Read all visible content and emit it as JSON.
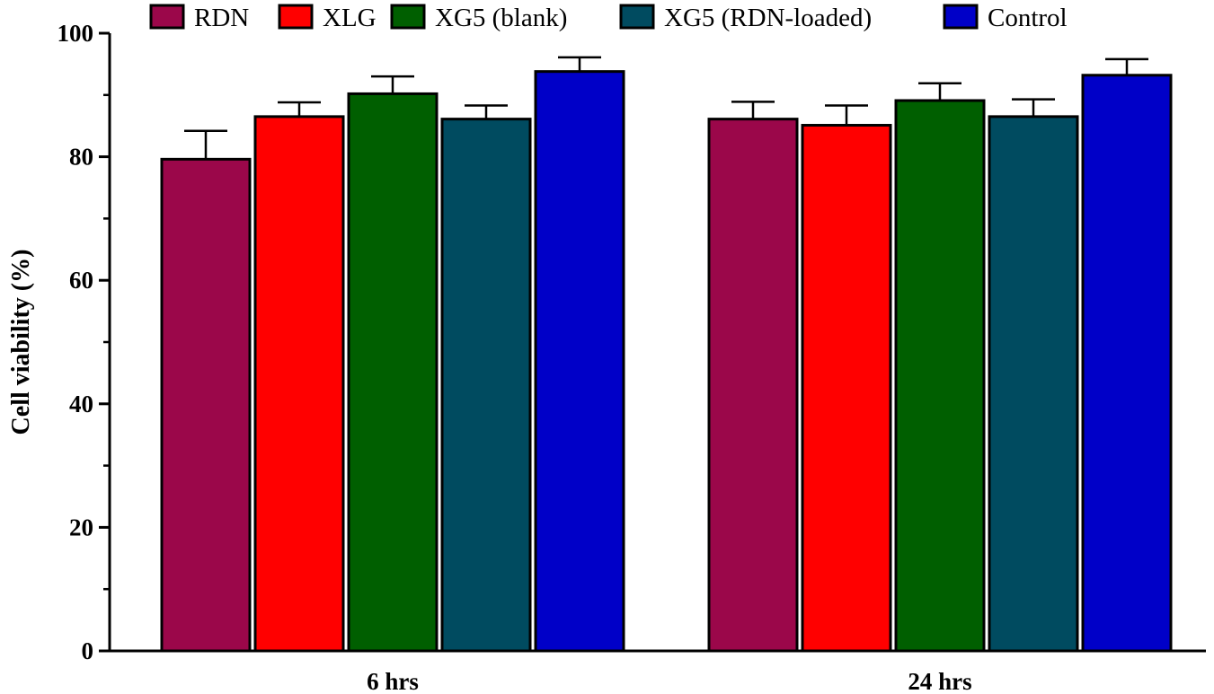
{
  "chart_data": {
    "type": "bar",
    "title": "",
    "xlabel": "",
    "ylabel": "Cell viability (%)",
    "ylim": [
      0,
      100
    ],
    "yticks": [
      0,
      20,
      40,
      60,
      80,
      100
    ],
    "grid": false,
    "legend_position": "top",
    "categories": [
      "6 hrs",
      "24 hrs"
    ],
    "series": [
      {
        "name": "RDN",
        "color": "#9b074a",
        "values": [
          79.6,
          86.1
        ],
        "errors": [
          4.6,
          2.8
        ]
      },
      {
        "name": "XLG",
        "color": "#ff0000",
        "values": [
          86.5,
          85.1
        ],
        "errors": [
          2.3,
          3.2
        ]
      },
      {
        "name": "XG5 (blank)",
        "color": "#005f00",
        "values": [
          90.2,
          89.1
        ],
        "errors": [
          2.8,
          2.8
        ]
      },
      {
        "name": "XG5 (RDN-loaded)",
        "color": "#004b60",
        "values": [
          86.1,
          86.5
        ],
        "errors": [
          2.2,
          2.8
        ]
      },
      {
        "name": "Control",
        "color": "#0000c8",
        "values": [
          93.8,
          93.2
        ],
        "errors": [
          2.3,
          2.6
        ]
      }
    ]
  }
}
